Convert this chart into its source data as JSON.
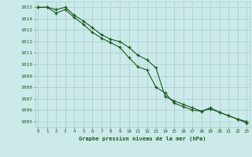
{
  "title": "Graphe pression niveau de la mer (hPa)",
  "bg_color": "#cceaea",
  "line_color": "#1a5c1a",
  "grid_color": "#aacccc",
  "ylim": [
    1004.5,
    1015.5
  ],
  "xlim": [
    -0.3,
    23.3
  ],
  "yticks": [
    1005,
    1006,
    1007,
    1008,
    1009,
    1010,
    1011,
    1012,
    1013,
    1014,
    1015
  ],
  "xticks": [
    0,
    1,
    2,
    3,
    4,
    5,
    6,
    7,
    8,
    9,
    10,
    11,
    12,
    13,
    14,
    15,
    16,
    17,
    18,
    19,
    20,
    21,
    22,
    23
  ],
  "series1_x": [
    0,
    1,
    2,
    3,
    4,
    5,
    6,
    7,
    8,
    9,
    10,
    11,
    12,
    13,
    14,
    15,
    16,
    17,
    18,
    19,
    20,
    21,
    22,
    23
  ],
  "series1_y": [
    1015.0,
    1015.0,
    1014.8,
    1015.0,
    1014.3,
    1013.8,
    1013.2,
    1012.6,
    1012.2,
    1012.0,
    1011.5,
    1010.8,
    1010.4,
    1009.7,
    1007.2,
    1006.8,
    1006.5,
    1006.2,
    1005.9,
    1006.1,
    1005.8,
    1005.5,
    1005.2,
    1005.0
  ],
  "series2_x": [
    0,
    1,
    2,
    3,
    4,
    5,
    6,
    7,
    8,
    9,
    10,
    11,
    12,
    13,
    14,
    15,
    16,
    17,
    18,
    19,
    20,
    21,
    22,
    23
  ],
  "series2_y": [
    1015.0,
    1015.0,
    1014.5,
    1014.8,
    1014.1,
    1013.5,
    1012.8,
    1012.3,
    1011.9,
    1011.5,
    1010.6,
    1009.8,
    1009.5,
    1008.0,
    1007.5,
    1006.6,
    1006.3,
    1006.0,
    1005.9,
    1006.2,
    1005.8,
    1005.5,
    1005.2,
    1004.85
  ]
}
